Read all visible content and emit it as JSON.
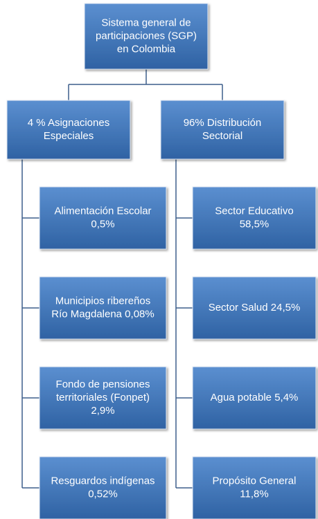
{
  "root": {
    "label": [
      "Sistema general de",
      "participaciones (SGP)",
      "en Colombia"
    ]
  },
  "branches": [
    {
      "label": [
        "4 % Asignaciones",
        "Especiales"
      ],
      "children": [
        {
          "label": [
            "Alimentación Escolar",
            "0,5%"
          ]
        },
        {
          "label": [
            "Municipios ribereños",
            "Río Magdalena 0,08%"
          ]
        },
        {
          "label": [
            "Fondo de pensiones",
            "territoriales (Fonpet)",
            "2,9%"
          ]
        },
        {
          "label": [
            "Resguardos indígenas",
            "0,52%"
          ]
        }
      ]
    },
    {
      "label": [
        "96% Distribución",
        "Sectorial"
      ],
      "children": [
        {
          "label": [
            "Sector Educativo",
            "58,5%"
          ]
        },
        {
          "label": [
            "Sector Salud 24,5%"
          ]
        },
        {
          "label": [
            "Agua potable 5,4%"
          ]
        },
        {
          "label": [
            "Propósito General",
            "11,8%"
          ]
        }
      ]
    }
  ]
}
